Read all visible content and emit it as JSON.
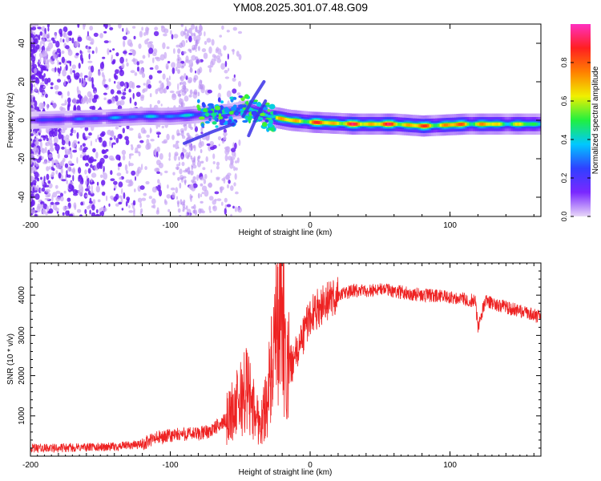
{
  "title": "YM08.2025.301.07.48.G09",
  "chart_data": [
    {
      "type": "heatmap",
      "name": "spectrogram",
      "xlabel": "Height of straight line (km)",
      "ylabel": "Frequency (Hz)",
      "xlim": [
        -200,
        165
      ],
      "ylim": [
        -50,
        50
      ],
      "xticks": [
        -200,
        -100,
        0,
        100
      ],
      "xtick_labels": [
        "-200",
        "-100",
        "0",
        "100"
      ],
      "yticks": [
        -40,
        -20,
        0,
        20,
        40
      ],
      "ytick_labels": [
        "-40",
        "-20",
        "0",
        "20",
        "40"
      ],
      "colorbar": {
        "label": "Normalized spectral amplitude",
        "range": [
          0,
          1
        ],
        "ticks": [
          0.0,
          0.2,
          0.4,
          0.6,
          0.8
        ],
        "tick_labels": [
          "0.0",
          "0.2",
          "0.4",
          "0.6",
          "0.8"
        ],
        "colormap": [
          "#e8d8f8",
          "#7a28ff",
          "#3040ff",
          "#00c8ff",
          "#20f040",
          "#f0f000",
          "#ff8000",
          "#ff2020",
          "#ff30c0"
        ]
      },
      "ridge": [
        {
          "x": -200,
          "f": 0,
          "amp": 0.25
        },
        {
          "x": -150,
          "f": 1,
          "amp": 0.35
        },
        {
          "x": -120,
          "f": 2,
          "amp": 0.4
        },
        {
          "x": -100,
          "f": 2,
          "amp": 0.42
        },
        {
          "x": -60,
          "f": 4,
          "amp": 0.45
        },
        {
          "x": -45,
          "f": 6,
          "amp": 0.45
        },
        {
          "x": -30,
          "f": 2,
          "amp": 0.7
        },
        {
          "x": -15,
          "f": 0,
          "amp": 0.85
        },
        {
          "x": 0,
          "f": -1,
          "amp": 0.9
        },
        {
          "x": 30,
          "f": -2,
          "amp": 0.95
        },
        {
          "x": 60,
          "f": -2,
          "amp": 0.95
        },
        {
          "x": 80,
          "f": -3,
          "amp": 0.9
        },
        {
          "x": 110,
          "f": -2,
          "amp": 0.9
        },
        {
          "x": 165,
          "f": -2,
          "amp": 0.6
        }
      ]
    },
    {
      "type": "line",
      "name": "snr",
      "xlabel": "Height of straight line (km)",
      "ylabel": "SNR (10 * v/v)",
      "xlim": [
        -200,
        165
      ],
      "ylim": [
        0,
        4800
      ],
      "xticks": [
        -200,
        -100,
        0,
        100
      ],
      "xtick_labels": [
        "-200",
        "-100",
        "0",
        "100"
      ],
      "yticks": [
        1000,
        2000,
        3000,
        4000
      ],
      "ytick_labels": [
        "1000",
        "2000",
        "3000",
        "4000"
      ],
      "series": [
        {
          "name": "SNR",
          "color": "#ee2222",
          "x": [
            -200,
            -180,
            -160,
            -140,
            -120,
            -110,
            -100,
            -90,
            -80,
            -70,
            -60,
            -50,
            -45,
            -40,
            -35,
            -30,
            -25,
            -20,
            -17,
            -15,
            -10,
            -5,
            0,
            10,
            20,
            30,
            40,
            50,
            60,
            80,
            100,
            110,
            118,
            120,
            125,
            140,
            165
          ],
          "y": [
            200,
            200,
            220,
            230,
            300,
            450,
            500,
            550,
            550,
            650,
            900,
            1400,
            1700,
            1100,
            800,
            1600,
            2600,
            4100,
            1900,
            2200,
            2500,
            3000,
            3500,
            3800,
            4000,
            4100,
            4100,
            4150,
            4100,
            4000,
            3950,
            3900,
            3850,
            3200,
            3850,
            3700,
            3450
          ]
        }
      ]
    }
  ]
}
